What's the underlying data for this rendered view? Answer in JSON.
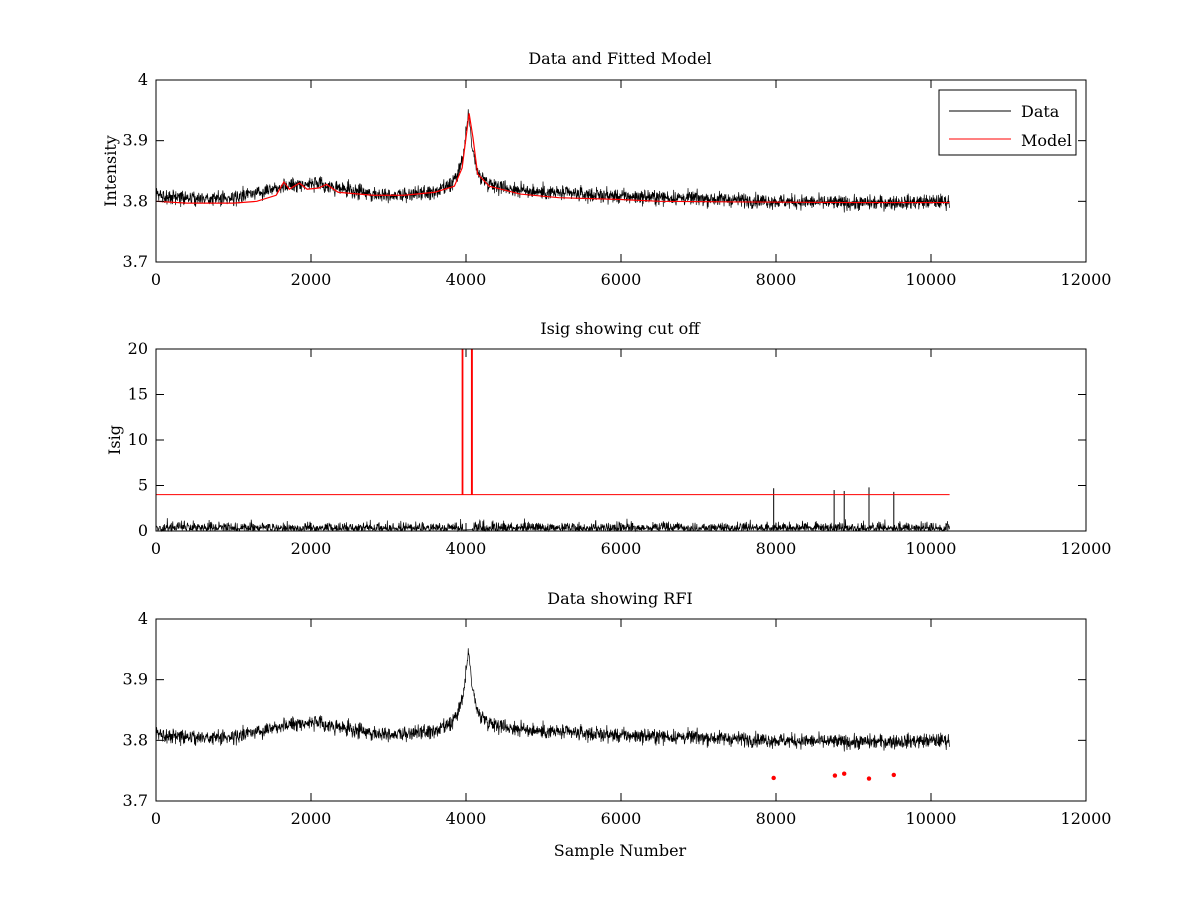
{
  "chart_data": [
    {
      "id": "fit",
      "type": "line",
      "title": "Data and Fitted Model",
      "xlabel": "",
      "ylabel": "Intensity",
      "xlim": [
        0,
        12000
      ],
      "ylim": [
        3.7,
        4.0
      ],
      "xticks": [
        0,
        2000,
        4000,
        6000,
        8000,
        10000,
        12000
      ],
      "yticks": [
        3.7,
        3.8,
        3.9,
        4.0
      ],
      "xtick_labels": [
        "0",
        "2000",
        "4000",
        "6000",
        "8000",
        "10000",
        "12000"
      ],
      "ytick_labels": [
        "3.7",
        "3.8",
        "3.9",
        "4"
      ],
      "legend": {
        "position": "top-right",
        "entries": [
          {
            "label": "Data",
            "color": "#000000"
          },
          {
            "label": "Model",
            "color": "#ff0000"
          }
        ]
      },
      "data_series": {
        "name": "Data",
        "color": "#000000",
        "x_range": [
          0,
          10240
        ],
        "baseline_points": [
          [
            0,
            3.81
          ],
          [
            500,
            3.805
          ],
          [
            1000,
            3.805
          ],
          [
            1300,
            3.815
          ],
          [
            1600,
            3.825
          ],
          [
            2000,
            3.83
          ],
          [
            2400,
            3.82
          ],
          [
            2800,
            3.812
          ],
          [
            3200,
            3.81
          ],
          [
            3600,
            3.815
          ],
          [
            3800,
            3.825
          ],
          [
            3900,
            3.845
          ],
          [
            3980,
            3.885
          ],
          [
            4030,
            3.95
          ],
          [
            4080,
            3.89
          ],
          [
            4150,
            3.845
          ],
          [
            4300,
            3.83
          ],
          [
            4600,
            3.82
          ],
          [
            5000,
            3.815
          ],
          [
            6000,
            3.808
          ],
          [
            7000,
            3.805
          ],
          [
            8000,
            3.8
          ],
          [
            9000,
            3.797
          ],
          [
            10240,
            3.8
          ]
        ],
        "noise_amplitude": 0.012,
        "color_note": "dense noisy trace"
      },
      "model_series": {
        "name": "Model",
        "color": "#ff0000",
        "points": [
          [
            0,
            3.8
          ],
          [
            400,
            3.797
          ],
          [
            1000,
            3.797
          ],
          [
            1300,
            3.8
          ],
          [
            1550,
            3.81
          ],
          [
            1650,
            3.832
          ],
          [
            1720,
            3.82
          ],
          [
            1850,
            3.83
          ],
          [
            1950,
            3.82
          ],
          [
            2100,
            3.822
          ],
          [
            2200,
            3.828
          ],
          [
            2350,
            3.815
          ],
          [
            2800,
            3.81
          ],
          [
            3200,
            3.81
          ],
          [
            3600,
            3.815
          ],
          [
            3850,
            3.825
          ],
          [
            3950,
            3.855
          ],
          [
            4000,
            3.905
          ],
          [
            4040,
            3.945
          ],
          [
            4090,
            3.905
          ],
          [
            4150,
            3.845
          ],
          [
            4300,
            3.825
          ],
          [
            4700,
            3.812
          ],
          [
            5200,
            3.806
          ],
          [
            6000,
            3.803
          ],
          [
            6500,
            3.8
          ],
          [
            7500,
            3.799
          ],
          [
            9000,
            3.798
          ],
          [
            10240,
            3.798
          ]
        ]
      }
    },
    {
      "id": "isig",
      "type": "line",
      "title": "Isig showing cut off",
      "xlabel": "",
      "ylabel": "Isig",
      "xlim": [
        0,
        12000
      ],
      "ylim": [
        0,
        20
      ],
      "xticks": [
        0,
        2000,
        4000,
        6000,
        8000,
        10000,
        12000
      ],
      "yticks": [
        0,
        5,
        10,
        15,
        20
      ],
      "xtick_labels": [
        "0",
        "2000",
        "4000",
        "6000",
        "8000",
        "10000",
        "12000"
      ],
      "ytick_labels": [
        "0",
        "5",
        "10",
        "15",
        "20"
      ],
      "isig_series": {
        "name": "Isig",
        "color": "#000000",
        "x_range": [
          0,
          10240
        ],
        "typical_max": 2.5,
        "spikes": [
          [
            7970,
            4.7
          ],
          [
            8750,
            4.5
          ],
          [
            8880,
            4.4
          ],
          [
            9200,
            4.8
          ],
          [
            9520,
            4.3
          ]
        ],
        "gap_x": [
          3960,
          4080
        ]
      },
      "cutoff_series": {
        "name": "Cutoff",
        "color": "#ff0000",
        "points": [
          [
            0,
            4
          ],
          [
            3950,
            4
          ],
          [
            3950,
            20
          ],
          [
            3960,
            20
          ],
          [
            3960,
            4
          ],
          [
            4070,
            4
          ],
          [
            4070,
            20
          ],
          [
            4082,
            20
          ],
          [
            4082,
            4
          ],
          [
            10240,
            4
          ]
        ]
      }
    },
    {
      "id": "rfi",
      "type": "line",
      "title": "Data showing RFI",
      "xlabel": "Sample Number",
      "ylabel": "",
      "xlim": [
        0,
        12000
      ],
      "ylim": [
        3.7,
        4.0
      ],
      "xticks": [
        0,
        2000,
        4000,
        6000,
        8000,
        10000,
        12000
      ],
      "yticks": [
        3.7,
        3.8,
        3.9,
        4.0
      ],
      "xtick_labels": [
        "0",
        "2000",
        "4000",
        "6000",
        "8000",
        "10000",
        "12000"
      ],
      "ytick_labels": [
        "3.7",
        "3.8",
        "3.9",
        "4"
      ],
      "rfi_points": {
        "color": "#ff0000",
        "points": [
          [
            7970,
            3.738
          ],
          [
            8760,
            3.742
          ],
          [
            8880,
            3.745
          ],
          [
            9200,
            3.737
          ],
          [
            9520,
            3.743
          ]
        ]
      }
    }
  ]
}
